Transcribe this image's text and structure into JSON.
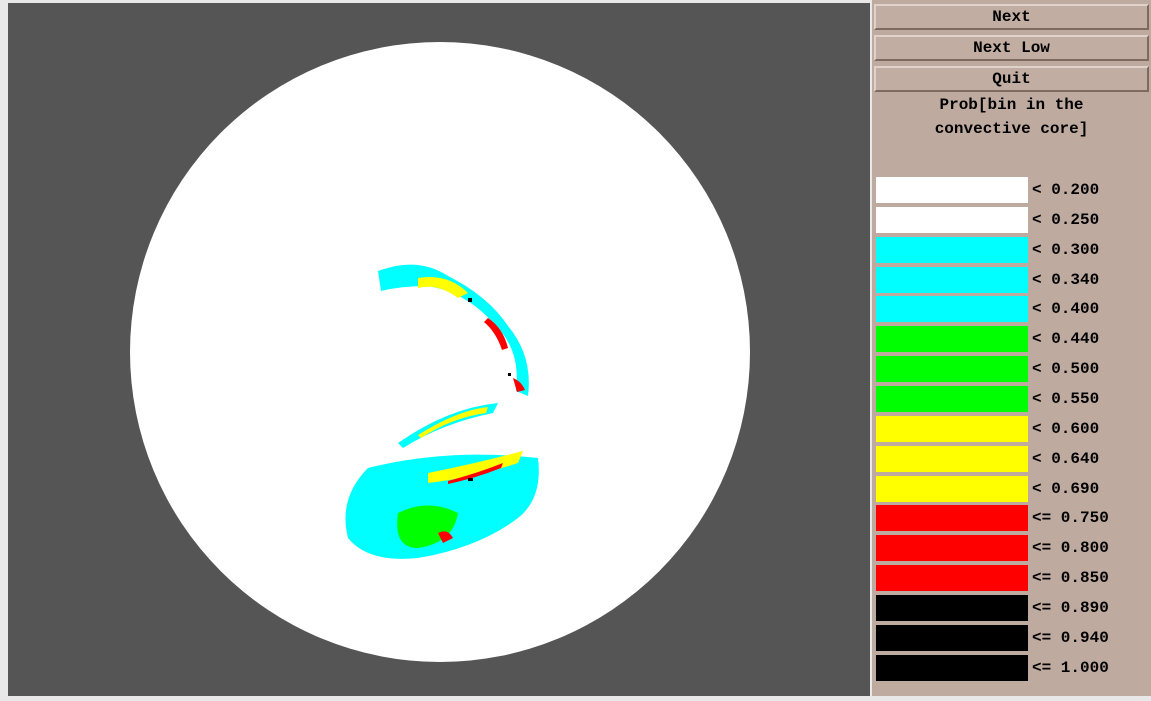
{
  "buttons": [
    "Next",
    "Next Low",
    "Quit"
  ],
  "legend": {
    "title_lines": [
      "Prob[bin in the",
      "convective core]"
    ],
    "items": [
      {
        "label": "< 0.200",
        "color": "#ffffff"
      },
      {
        "label": "< 0.250",
        "color": "#ffffff"
      },
      {
        "label": "< 0.300",
        "color": "#00ffff"
      },
      {
        "label": "< 0.340",
        "color": "#00ffff"
      },
      {
        "label": "< 0.400",
        "color": "#00ffff"
      },
      {
        "label": "< 0.440",
        "color": "#00ff00"
      },
      {
        "label": "< 0.500",
        "color": "#00ff00"
      },
      {
        "label": "< 0.550",
        "color": "#00ff00"
      },
      {
        "label": "< 0.600",
        "color": "#ffff00"
      },
      {
        "label": "< 0.640",
        "color": "#ffff00"
      },
      {
        "label": "< 0.690",
        "color": "#ffff00"
      },
      {
        "label": "<= 0.750",
        "color": "#ff0000"
      },
      {
        "label": "<= 0.800",
        "color": "#ff0000"
      },
      {
        "label": "<= 0.850",
        "color": "#ff0000"
      },
      {
        "label": "<= 0.890",
        "color": "#000000"
      },
      {
        "label": "<= 0.940",
        "color": "#000000"
      },
      {
        "label": "<= 1.000",
        "color": "#000000"
      }
    ]
  }
}
